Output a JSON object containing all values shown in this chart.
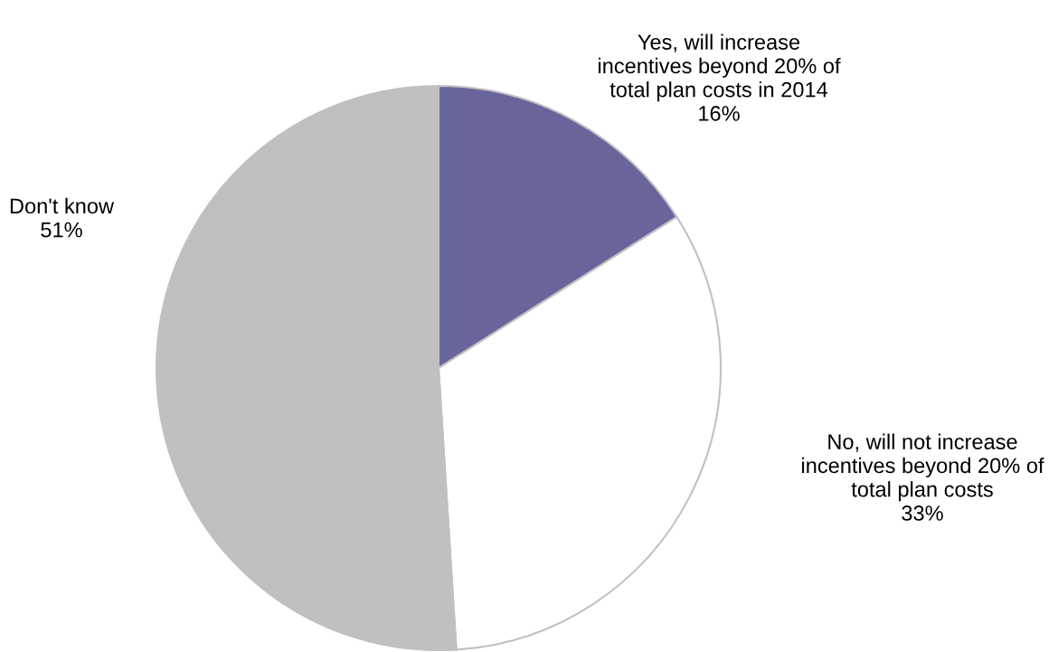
{
  "chart_data": {
    "type": "pie",
    "categories": [
      "Yes, will increase\nincentives beyond 20% of\ntotal plan costs in 2014",
      "No, will not increase\nincentives beyond 20% of\ntotal plan costs",
      "Don't know"
    ],
    "values": [
      16,
      33,
      51
    ],
    "colors": [
      "#67659a",
      "#ffffff",
      "#c0c0c0"
    ],
    "value_labels": [
      "16%",
      "33%",
      "51%"
    ],
    "legend": false
  }
}
